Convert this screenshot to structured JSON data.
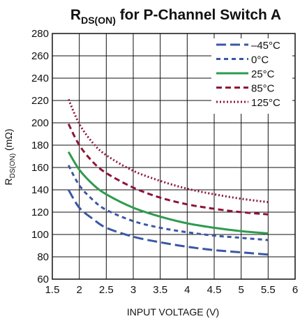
{
  "chart_data": {
    "type": "line",
    "title": {
      "base": "R",
      "subscript": "DS(ON)",
      "rest": " for P-Channel Switch A"
    },
    "xlabel": "INPUT VOLTAGE (V)",
    "ylabel": {
      "base": "R",
      "subscript": "DS(ON)",
      "rest": " (mΩ)"
    },
    "xlim": [
      1.5,
      6
    ],
    "ylim": [
      60,
      280
    ],
    "xticks": [
      1.5,
      2,
      2.5,
      3,
      3.5,
      4,
      4.5,
      5,
      5.5,
      6
    ],
    "xtick_labels": [
      "1.5",
      "2",
      "2.5",
      "3",
      "3.5",
      "4",
      "4.5",
      "5",
      "5.5",
      "6"
    ],
    "yticks": [
      60,
      80,
      100,
      120,
      140,
      160,
      180,
      200,
      220,
      240,
      260,
      280
    ],
    "ytick_labels": [
      "60",
      "80",
      "100",
      "120",
      "140",
      "160",
      "180",
      "200",
      "220",
      "240",
      "260",
      "280"
    ],
    "grid": true,
    "legend_position": "top-right",
    "series": [
      {
        "name": "–45°C",
        "color": "#3a57a6",
        "style": "long-dash",
        "x": [
          1.8,
          2.0,
          2.25,
          2.5,
          3.0,
          3.5,
          4.0,
          4.5,
          5.0,
          5.5
        ],
        "y": [
          140,
          124,
          114,
          106,
          98,
          93,
          89,
          86,
          84,
          82
        ]
      },
      {
        "name": "0°C",
        "color": "#3a57a6",
        "style": "short-dash",
        "x": [
          1.8,
          2.0,
          2.25,
          2.5,
          3.0,
          3.5,
          4.0,
          4.5,
          5.0,
          5.5
        ],
        "y": [
          162,
          144,
          131,
          122,
          112,
          106,
          102,
          99,
          97,
          95
        ]
      },
      {
        "name": "25°C",
        "color": "#2e9b4e",
        "style": "solid",
        "x": [
          1.8,
          2.0,
          2.25,
          2.5,
          3.0,
          3.5,
          4.0,
          4.5,
          5.0,
          5.5
        ],
        "y": [
          174,
          158,
          145,
          136,
          124,
          116,
          110,
          106,
          103,
          101
        ]
      },
      {
        "name": "85°C",
        "color": "#8e1537",
        "style": "dash",
        "x": [
          1.8,
          2.0,
          2.25,
          2.5,
          3.0,
          3.5,
          4.0,
          4.5,
          5.0,
          5.5
        ],
        "y": [
          199,
          180,
          165,
          155,
          142,
          133,
          127,
          123,
          120,
          118
        ]
      },
      {
        "name": "125°C",
        "color": "#8e1537",
        "style": "dotted",
        "x": [
          1.8,
          2.0,
          2.25,
          2.5,
          3.0,
          3.5,
          4.0,
          4.5,
          5.0,
          5.5
        ],
        "y": [
          221,
          199,
          182,
          171,
          157,
          148,
          141,
          136,
          132,
          129
        ]
      }
    ]
  }
}
